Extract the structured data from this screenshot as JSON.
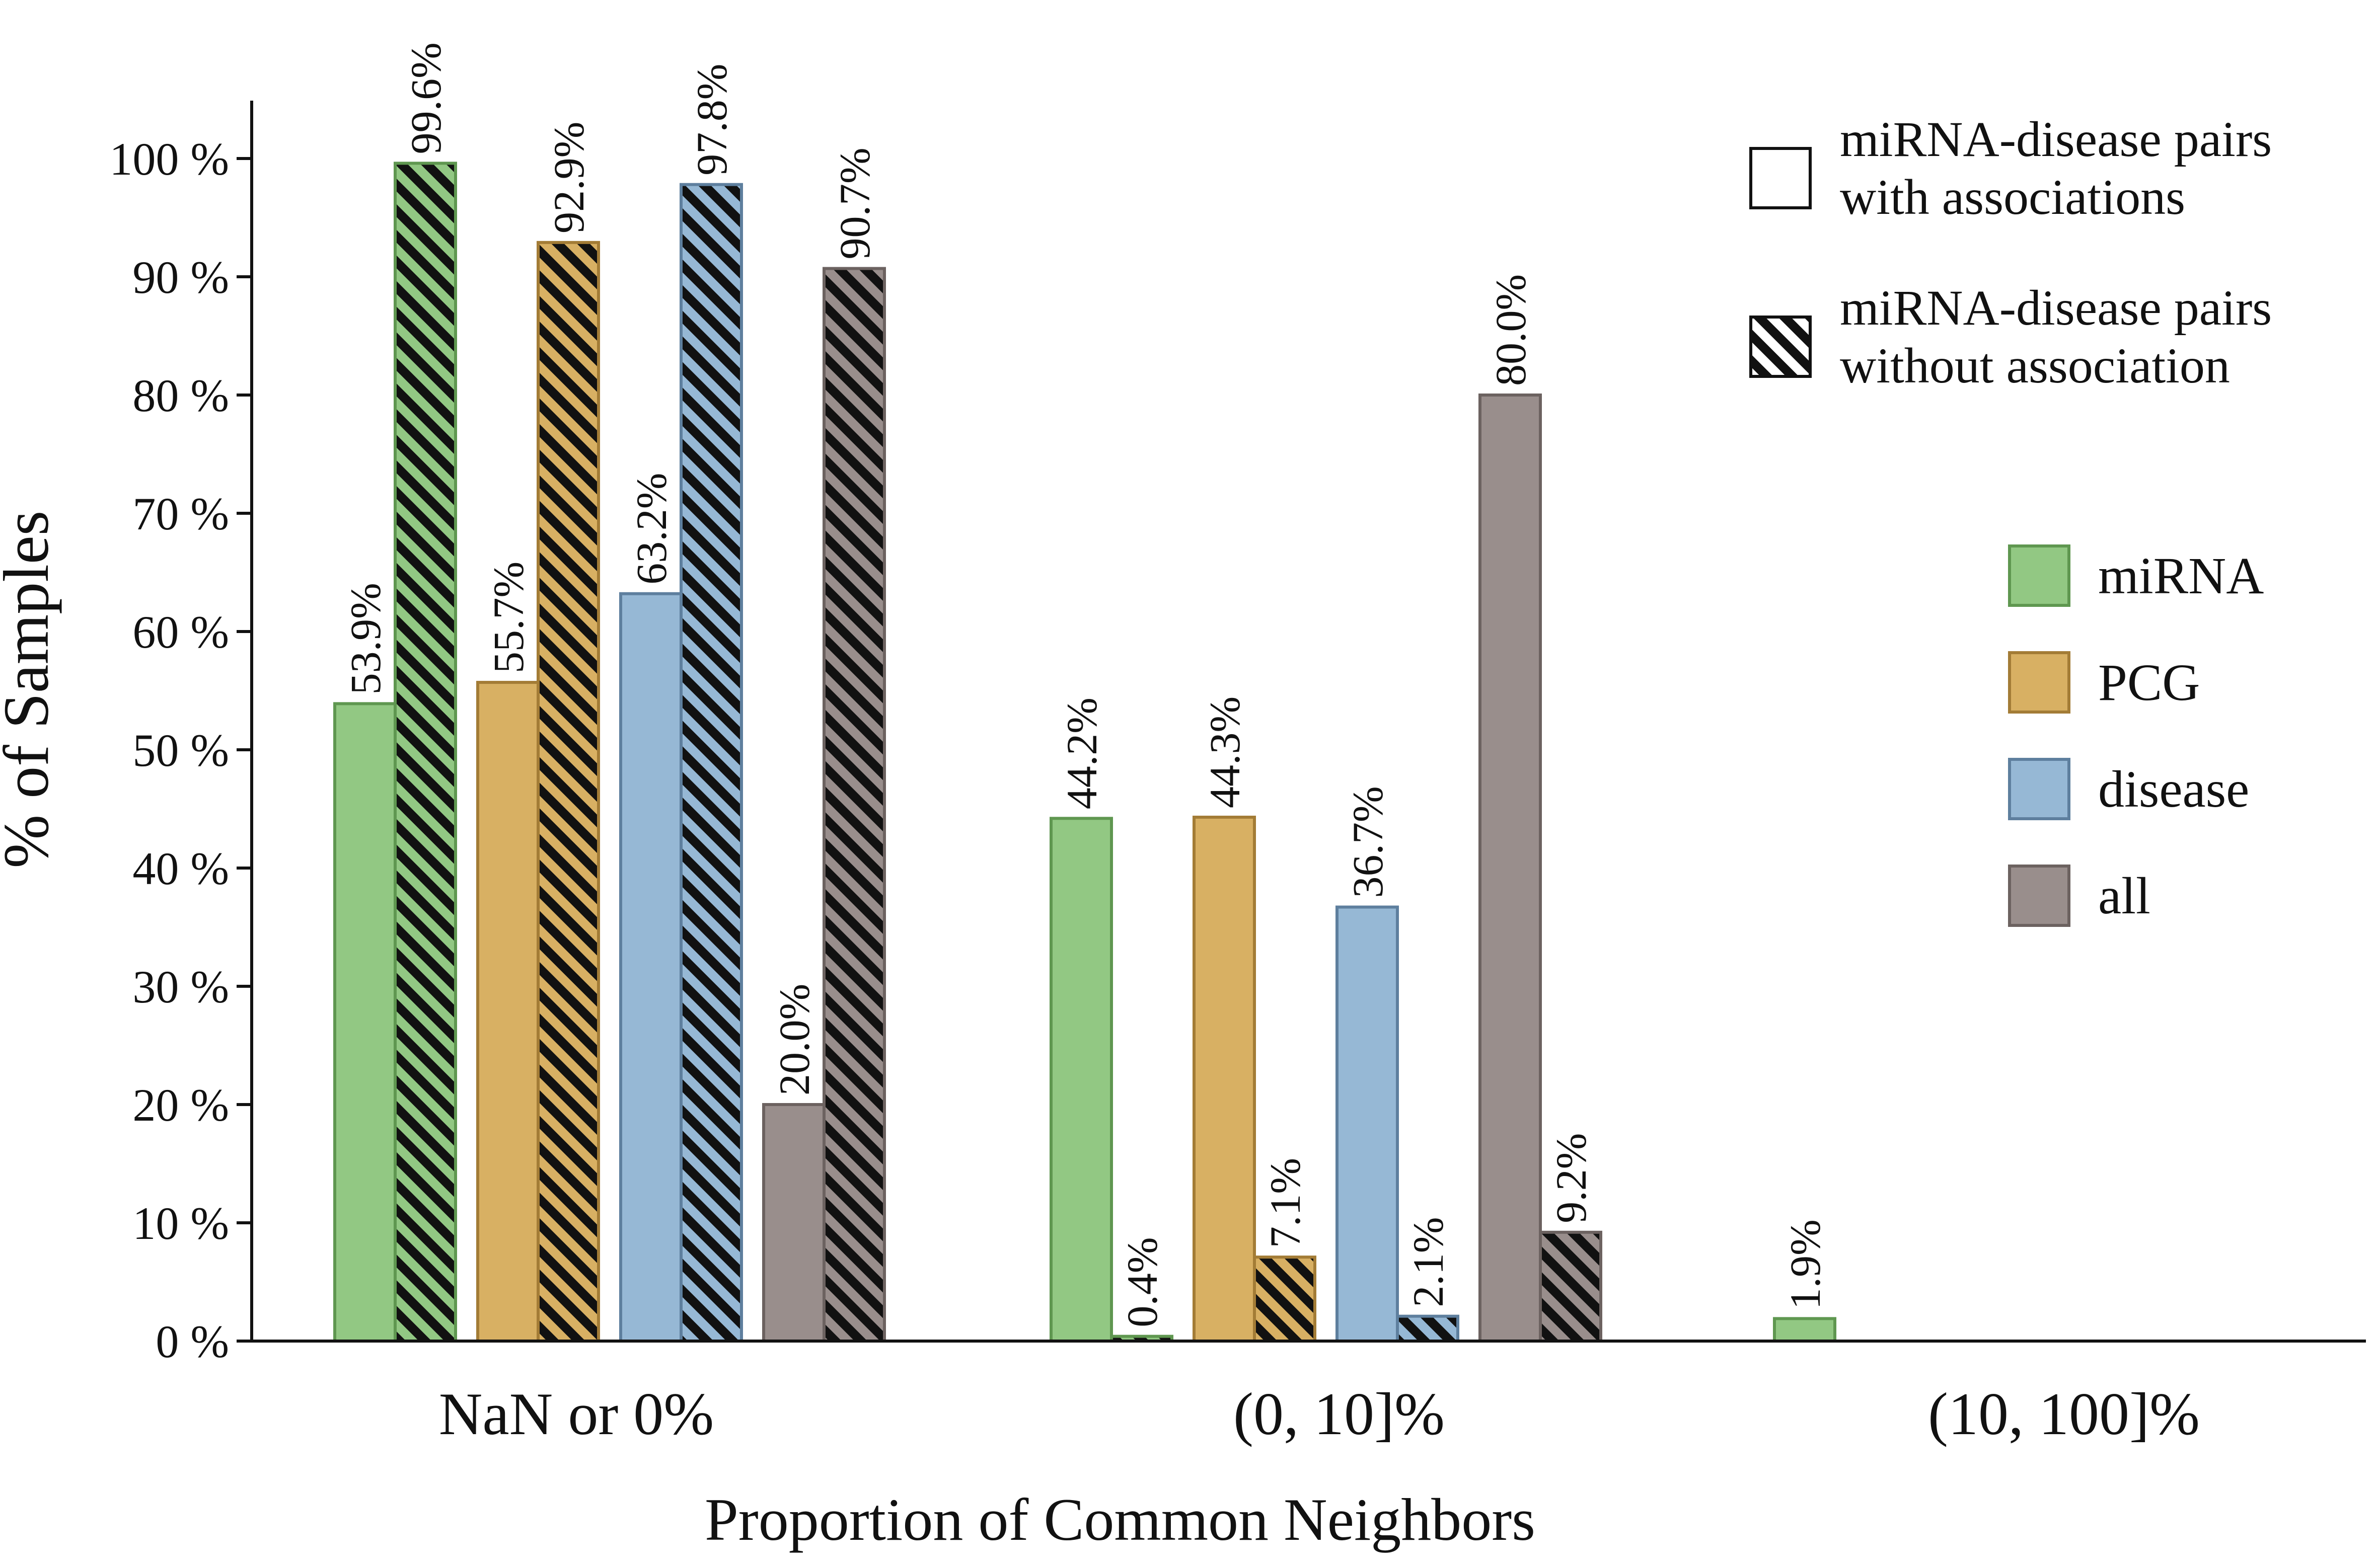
{
  "chart_data": {
    "type": "bar",
    "title": "",
    "xlabel": "Proportion of Common Neighbors",
    "ylabel": "% of Samples",
    "ylim": [
      0,
      100
    ],
    "yticks": [
      {
        "value": 0,
        "label": "0 %"
      },
      {
        "value": 10,
        "label": "10 %"
      },
      {
        "value": 20,
        "label": "20 %"
      },
      {
        "value": 30,
        "label": "30 %"
      },
      {
        "value": 40,
        "label": "40 %"
      },
      {
        "value": 50,
        "label": "50 %"
      },
      {
        "value": 60,
        "label": "60 %"
      },
      {
        "value": 70,
        "label": "70 %"
      },
      {
        "value": 80,
        "label": "80 %"
      },
      {
        "value": 90,
        "label": "90 %"
      },
      {
        "value": 100,
        "label": "100 %"
      }
    ],
    "categories": [
      "NaN or 0%",
      "(0, 10]%",
      "(10, 100]%"
    ],
    "neighbor_types": [
      {
        "key": "miRNA",
        "label": "miRNA",
        "fill": "#92c883",
        "stroke": "#5f9750"
      },
      {
        "key": "PCG",
        "label": "PCG",
        "fill": "#d8b063",
        "stroke": "#a37c36"
      },
      {
        "key": "disease",
        "label": "disease",
        "fill": "#96b8d5",
        "stroke": "#5e7f9e"
      },
      {
        "key": "all",
        "label": "all",
        "fill": "#998e8c",
        "stroke": "#6c6260"
      }
    ],
    "pair_types": [
      {
        "key": "with",
        "label_line1": "miRNA-disease pairs",
        "label_line2": "with associations",
        "pattern": "none"
      },
      {
        "key": "without",
        "label_line1": "miRNA-disease pairs",
        "label_line2": "without association",
        "pattern": "hatch"
      }
    ],
    "series": [
      {
        "name": "miRNA / with associations",
        "type_key": "miRNA",
        "pair_key": "with",
        "values": [
          53.9,
          44.2,
          1.9
        ],
        "labels": [
          "53.9%",
          "44.2%",
          "1.9%"
        ]
      },
      {
        "name": "miRNA / without association",
        "type_key": "miRNA",
        "pair_key": "without",
        "values": [
          99.6,
          0.4,
          0.0
        ],
        "labels": [
          "99.6%",
          "0.4%",
          ""
        ]
      },
      {
        "name": "PCG / with associations",
        "type_key": "PCG",
        "pair_key": "with",
        "values": [
          55.7,
          44.3,
          0.0
        ],
        "labels": [
          "55.7%",
          "44.3%",
          ""
        ]
      },
      {
        "name": "PCG / without association",
        "type_key": "PCG",
        "pair_key": "without",
        "values": [
          92.9,
          7.1,
          0.0
        ],
        "labels": [
          "92.9%",
          "7.1%",
          ""
        ]
      },
      {
        "name": "disease / with associations",
        "type_key": "disease",
        "pair_key": "with",
        "values": [
          63.2,
          36.7,
          0.0
        ],
        "labels": [
          "63.2%",
          "36.7%",
          ""
        ]
      },
      {
        "name": "disease / without association",
        "type_key": "disease",
        "pair_key": "without",
        "values": [
          97.8,
          2.1,
          0.0
        ],
        "labels": [
          "97.8%",
          "2.1%",
          ""
        ]
      },
      {
        "name": "all / with associations",
        "type_key": "all",
        "pair_key": "with",
        "values": [
          20.0,
          80.0,
          0.0
        ],
        "labels": [
          "20.0%",
          "80.0%",
          ""
        ]
      },
      {
        "name": "all / without association",
        "type_key": "all",
        "pair_key": "without",
        "values": [
          90.7,
          9.2,
          0.0
        ],
        "labels": [
          "90.7%",
          "9.2%",
          ""
        ]
      }
    ],
    "legend_position": "right"
  }
}
